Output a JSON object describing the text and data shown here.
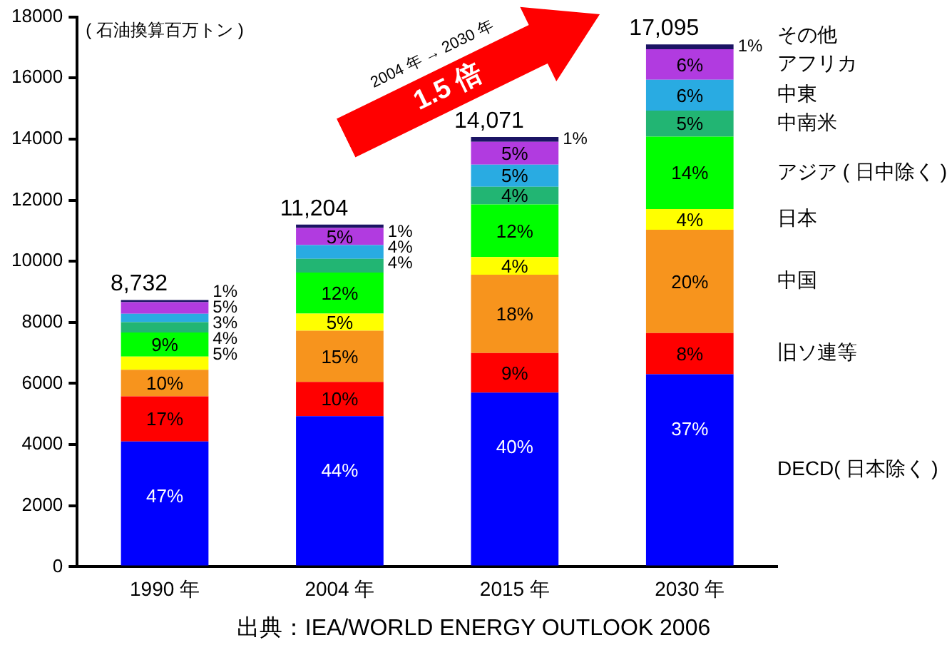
{
  "chart_data": {
    "type": "bar",
    "stacked": true,
    "ylabel": "( 石油換算百万トン )",
    "categories": [
      "1990 年",
      "2004 年",
      "2015 年",
      "2030 年"
    ],
    "series": [
      {
        "name": "DECD( 日本除く )",
        "color": "#0000ff",
        "values": [
          4100,
          4930,
          5700,
          6300
        ]
      },
      {
        "name": "旧ソ連等",
        "color": "#ff0000",
        "values": [
          1480,
          1120,
          1300,
          1350
        ]
      },
      {
        "name": "中国",
        "color": "#f7941d",
        "values": [
          870,
          1680,
          2560,
          3380
        ]
      },
      {
        "name": "日本",
        "color": "#ffff00",
        "values": [
          430,
          560,
          580,
          680
        ]
      },
      {
        "name": "アジア ( 日中除く )",
        "color": "#00ff00",
        "values": [
          790,
          1340,
          1720,
          2370
        ]
      },
      {
        "name": "中南米",
        "color": "#22b573",
        "values": [
          340,
          450,
          580,
          850
        ]
      },
      {
        "name": "中東",
        "color": "#29abe2",
        "values": [
          270,
          450,
          720,
          1010
        ]
      },
      {
        "name": "アフリカ",
        "color": "#b13be0",
        "values": [
          380,
          560,
          750,
          1000
        ]
      },
      {
        "name": "その他",
        "color": "#1b1464",
        "values": [
          70,
          110,
          160,
          160
        ]
      }
    ],
    "totals": [
      "8,732",
      "11,204",
      "14,071",
      "17,095"
    ],
    "ylim": [
      0,
      18000
    ],
    "yticks": [
      0,
      2000,
      4000,
      6000,
      8000,
      10000,
      12000,
      14000,
      16000,
      18000
    ],
    "grid": false,
    "legend": false,
    "annotations": [
      "2004 年 → 2030 年",
      "1.5 倍",
      "出典：IEA/WORLD ENERGY OUTLOOK 2006",
      {
        "text": "47%",
        "x": "1990 年",
        "y": 4100
      },
      {
        "text": "17%",
        "x": "1990 年",
        "y": 5580
      },
      {
        "text": "10%",
        "x": "1990 年",
        "y": 6450
      },
      {
        "text": "5%",
        "x": "1990 年",
        "y": 6880
      },
      {
        "text": "9%",
        "x": "1990 年",
        "y": 7670
      },
      {
        "text": "4%",
        "x": "1990 年",
        "y": 8010
      },
      {
        "text": "3%",
        "x": "1990 年",
        "y": 8280
      },
      {
        "text": "5%",
        "x": "1990 年",
        "y": 8660
      },
      {
        "text": "1%",
        "x": "1990 年",
        "y": 8730
      },
      {
        "text": "44%",
        "x": "2004 年",
        "y": 4930
      },
      {
        "text": "10%",
        "x": "2004 年",
        "y": 6050
      },
      {
        "text": "15%",
        "x": "2004 年",
        "y": 7730
      },
      {
        "text": "5%",
        "x": "2004 年",
        "y": 8290
      },
      {
        "text": "12%",
        "x": "2004 年",
        "y": 9630
      },
      {
        "text": "4%",
        "x": "2004 年",
        "y": 10080
      },
      {
        "text": "4%",
        "x": "2004 年",
        "y": 10530
      },
      {
        "text": "5%",
        "x": "2004 年",
        "y": 11090
      },
      {
        "text": "1%",
        "x": "2004 年",
        "y": 11200
      },
      {
        "text": "40%",
        "x": "2015 年",
        "y": 5700
      },
      {
        "text": "9%",
        "x": "2015 年",
        "y": 7000
      },
      {
        "text": "18%",
        "x": "2015 年",
        "y": 9560
      },
      {
        "text": "4%",
        "x": "2015 年",
        "y": 10140
      },
      {
        "text": "12%",
        "x": "2015 年",
        "y": 11860
      },
      {
        "text": "4%",
        "x": "2015 年",
        "y": 12440
      },
      {
        "text": "5%",
        "x": "2015 年",
        "y": 13160
      },
      {
        "text": "5%",
        "x": "2015 年",
        "y": 13910
      },
      {
        "text": "1%",
        "x": "2015 年",
        "y": 14070
      },
      {
        "text": "37%",
        "x": "2030 年",
        "y": 6300
      },
      {
        "text": "8%",
        "x": "2030 年",
        "y": 7650
      },
      {
        "text": "20%",
        "x": "2030 年",
        "y": 11030
      },
      {
        "text": "4%",
        "x": "2030 年",
        "y": 11710
      },
      {
        "text": "14%",
        "x": "2030 年",
        "y": 14080
      },
      {
        "text": "5%",
        "x": "2030 年",
        "y": 14930
      },
      {
        "text": "6%",
        "x": "2030 年",
        "y": 15940
      },
      {
        "text": "6%",
        "x": "2030 年",
        "y": 16940
      },
      {
        "text": "1%",
        "x": "2030 年",
        "y": 17100
      }
    ]
  }
}
